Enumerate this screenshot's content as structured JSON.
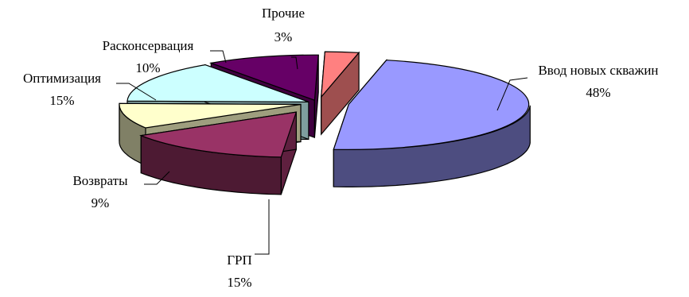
{
  "chart_data": {
    "type": "pie",
    "style": "3d-exploded",
    "legend": "none",
    "slices": [
      {
        "label": "Ввод новых скважин",
        "value": 48,
        "value_label": "48%",
        "color": "#9999ff"
      },
      {
        "label": "ГРП",
        "value": 15,
        "value_label": "15%",
        "color": "#993366"
      },
      {
        "label": "Возвраты",
        "value": 9,
        "value_label": "9%",
        "color": "#ffffcc"
      },
      {
        "label": "Оптимизация",
        "value": 15,
        "value_label": "15%",
        "color": "#ccffff"
      },
      {
        "label": "Расконсервация",
        "value": 10,
        "value_label": "10%",
        "color": "#660066"
      },
      {
        "label": "Прочие",
        "value": 3,
        "value_label": "3%",
        "color": "#ff8080"
      }
    ]
  }
}
